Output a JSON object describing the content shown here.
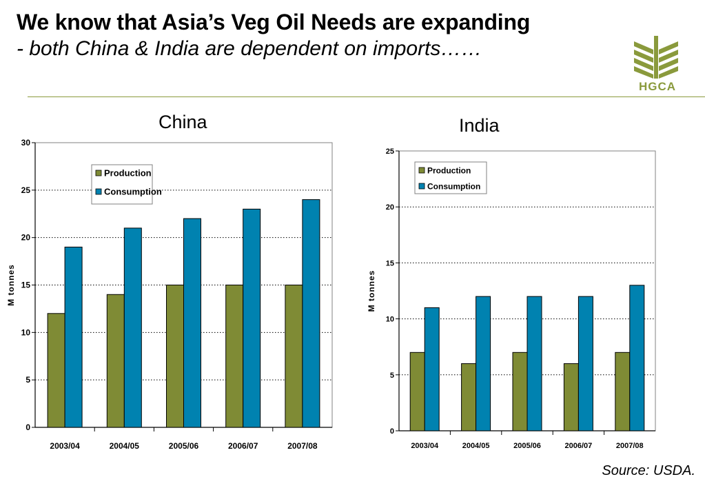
{
  "header": {
    "title": "We know that Asia’s Veg Oil Needs are expanding",
    "subtitle": "- both China & India are dependent on imports……"
  },
  "logo": {
    "text": "HGCA",
    "color": "#8a9a3c"
  },
  "source": "Source: USDA.",
  "colors": {
    "production": "#7f8b35",
    "consumption": "#0082b0"
  },
  "chart_data": [
    {
      "type": "bar",
      "title": "China",
      "ylabel": "M tonnes",
      "categories": [
        "2003/04",
        "2004/05",
        "2005/06",
        "2006/07",
        "2007/08"
      ],
      "series": [
        {
          "name": "Production",
          "values": [
            12,
            14,
            15,
            15,
            15
          ]
        },
        {
          "name": "Consumption",
          "values": [
            19,
            21,
            22,
            23,
            24
          ]
        }
      ],
      "ylim": [
        0,
        30
      ],
      "yticks": [
        0,
        5,
        10,
        15,
        20,
        25,
        30
      ],
      "grid": true,
      "legend": "top-left"
    },
    {
      "type": "bar",
      "title": "India",
      "ylabel": "M tonnes",
      "categories": [
        "2003/04",
        "2004/05",
        "2005/06",
        "2006/07",
        "2007/08"
      ],
      "series": [
        {
          "name": "Production",
          "values": [
            7,
            6,
            7,
            6,
            7
          ]
        },
        {
          "name": "Consumption",
          "values": [
            11,
            12,
            12,
            12,
            13
          ]
        }
      ],
      "ylim": [
        0,
        25
      ],
      "yticks": [
        0,
        5,
        10,
        15,
        20,
        25
      ],
      "grid": true,
      "legend": "top-left"
    }
  ]
}
